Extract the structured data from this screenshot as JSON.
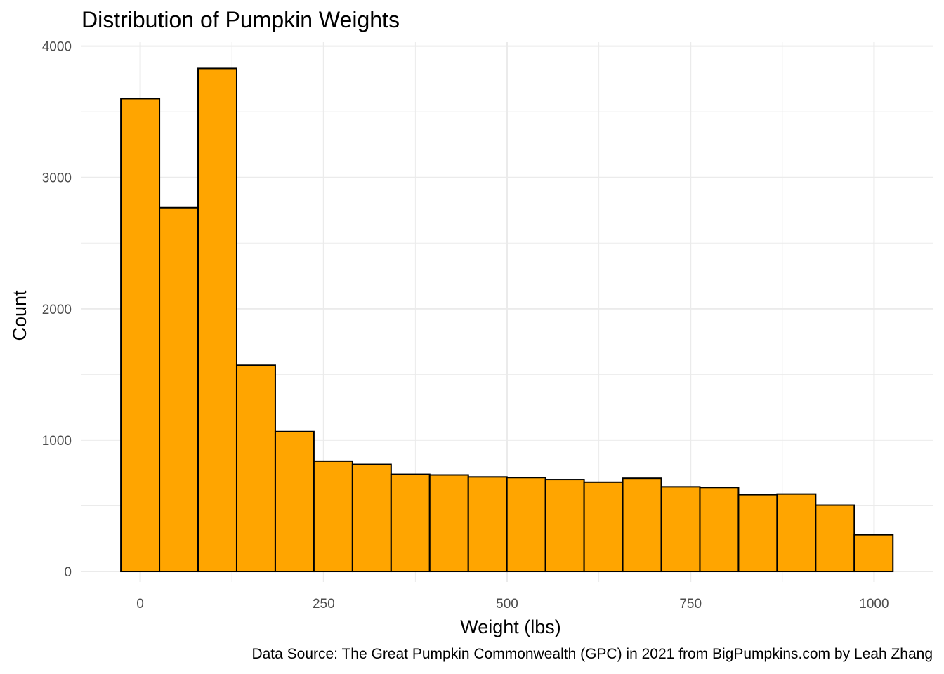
{
  "chart_data": {
    "type": "bar",
    "subtype": "histogram",
    "title": "Distribution of Pumpkin Weights",
    "caption": "Data Source: The Great Pumpkin Commonwealth (GPC) in 2021 from BigPumpkins.com by Leah Zhang",
    "xlabel": "Weight (lbs)",
    "ylabel": "Count",
    "bin_width": 52.6,
    "bin_start": -26.3,
    "values": [
      3600,
      2770,
      3830,
      1570,
      1065,
      840,
      815,
      740,
      735,
      720,
      715,
      700,
      680,
      710,
      645,
      640,
      585,
      590,
      505,
      280
    ],
    "xlim": [
      -80,
      1080
    ],
    "ylim": [
      -80,
      4030
    ],
    "x_ticks": [
      0,
      250,
      500,
      750,
      1000
    ],
    "x_tick_labels": [
      "0",
      "250",
      "500",
      "750",
      "1000"
    ],
    "y_ticks": [
      0,
      1000,
      2000,
      3000,
      4000
    ],
    "y_tick_labels": [
      "0",
      "1000",
      "2000",
      "3000",
      "4000"
    ],
    "grid": true,
    "bar_fill": "#FFA500",
    "bar_outline": "#000000",
    "grid_color": "#EBEBEB"
  }
}
